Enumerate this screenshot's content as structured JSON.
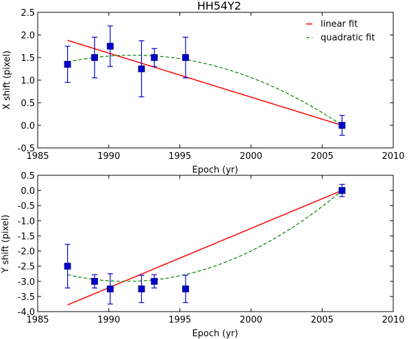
{
  "title": "HH54Y2",
  "colors": {
    "data": "#0000cc",
    "marker_edge": "#000080",
    "linear": "#ff0000",
    "quadratic": "#008000"
  },
  "chart_data": [
    {
      "type": "scatter",
      "title": "HH54Y2",
      "xlabel": "Epoch (yr)",
      "ylabel": "X shift (pixel)",
      "xlim": [
        1985,
        2010
      ],
      "ylim": [
        -0.5,
        2.5
      ],
      "xticks": [
        1985,
        1990,
        1995,
        2000,
        2005,
        2010
      ],
      "yticks": [
        -0.5,
        0.0,
        0.5,
        1.0,
        1.5,
        2.0,
        2.5
      ],
      "ytick_labels": [
        "-0.5",
        "0.0",
        "0.5",
        "1.0",
        "1.5",
        "2.0",
        "2.5"
      ],
      "legend_position": "top-right",
      "points": [
        {
          "x": 1987.1,
          "y": 1.35,
          "err": 0.4
        },
        {
          "x": 1989.0,
          "y": 1.5,
          "err": 0.45
        },
        {
          "x": 1990.1,
          "y": 1.75,
          "err": 0.45
        },
        {
          "x": 1992.3,
          "y": 1.25,
          "err": 0.62
        },
        {
          "x": 1993.2,
          "y": 1.5,
          "err": 0.2
        },
        {
          "x": 1995.4,
          "y": 1.5,
          "err": 0.45
        },
        {
          "x": 2006.4,
          "y": 0.0,
          "err": 0.22
        }
      ],
      "series": [
        {
          "name": "linear fit",
          "kind": "linear",
          "x_range": [
            1987.1,
            2006.4
          ],
          "coefficients": [
            1.88,
            -0.0974
          ],
          "x0": 1987.1
        },
        {
          "name": "quadratic fit",
          "kind": "quadratic",
          "x_range": [
            1987.1,
            2006.4
          ],
          "coefficients": [
            1.4,
            0.0662,
            -0.00719
          ],
          "x0": 1987.1
        }
      ]
    },
    {
      "type": "scatter",
      "xlabel": "Epoch (yr)",
      "ylabel": "Y shift (pixel)",
      "xlim": [
        1985,
        2010
      ],
      "ylim": [
        -4.0,
        0.5
      ],
      "xticks": [
        1985,
        1990,
        1995,
        2000,
        2005,
        2010
      ],
      "yticks": [
        -4.0,
        -3.5,
        -3.0,
        -2.5,
        -2.0,
        -1.5,
        -1.0,
        -0.5,
        0.0,
        0.5
      ],
      "ytick_labels": [
        "-4.0",
        "-3.5",
        "-3.0",
        "-2.5",
        "-2.0",
        "-1.5",
        "-1.0",
        "-0.5",
        "0.0",
        "0.5"
      ],
      "points": [
        {
          "x": 1987.1,
          "y": -2.5,
          "err": 0.72
        },
        {
          "x": 1989.0,
          "y": -3.0,
          "err": 0.22
        },
        {
          "x": 1990.1,
          "y": -3.25,
          "err": 0.5
        },
        {
          "x": 1992.3,
          "y": -3.25,
          "err": 0.45
        },
        {
          "x": 1993.2,
          "y": -3.0,
          "err": 0.22
        },
        {
          "x": 1995.4,
          "y": -3.25,
          "err": 0.45
        },
        {
          "x": 2006.4,
          "y": 0.0,
          "err": 0.2
        }
      ],
      "series": [
        {
          "name": "linear fit",
          "kind": "linear",
          "x_range": [
            1987.1,
            2006.4
          ],
          "coefficients": [
            -3.78,
            0.1959
          ],
          "x0": 1987.1
        },
        {
          "name": "quadratic fit",
          "kind": "quadratic",
          "x_range": [
            1987.1,
            2006.4
          ],
          "coefficients": [
            -2.78,
            -0.1074,
            0.01302
          ],
          "x0": 1987.1
        }
      ]
    }
  ]
}
